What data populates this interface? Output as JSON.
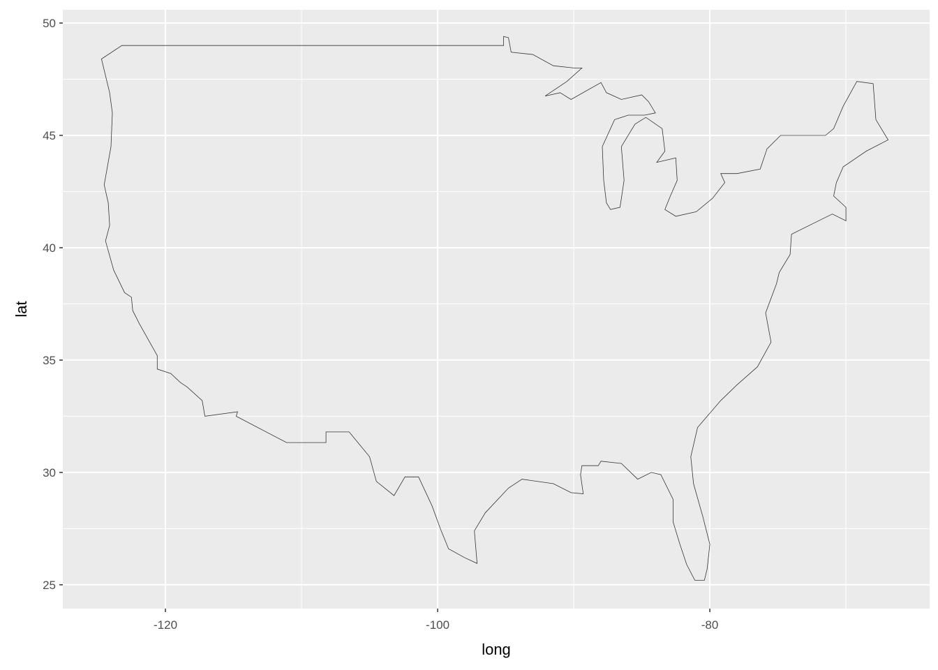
{
  "chart_data": {
    "type": "map-polygon",
    "xlabel": "long",
    "ylabel": "lat",
    "xlim": [
      -127.54,
      -63.85
    ],
    "ylim": [
      23.94,
      50.59
    ],
    "x_ticks": [
      -120,
      -100,
      -80
    ],
    "y_ticks": [
      25,
      30,
      35,
      40,
      45,
      50
    ],
    "x_tick_labels": [
      "-120",
      "-100",
      "-80"
    ],
    "y_tick_labels": [
      "25",
      "30",
      "35",
      "40",
      "45",
      "50"
    ],
    "grid": true,
    "panel_background": "#ebebeb",
    "grid_color": "#ffffff",
    "outline_color": "#333333",
    "outline": [
      [
        -124.7,
        48.4
      ],
      [
        -123.2,
        49.0
      ],
      [
        -95.15,
        49.0
      ],
      [
        -95.15,
        49.4
      ],
      [
        -94.8,
        49.35
      ],
      [
        -94.6,
        48.7
      ],
      [
        -93.0,
        48.6
      ],
      [
        -91.5,
        48.1
      ],
      [
        -90.0,
        48.0
      ],
      [
        -89.4,
        48.0
      ],
      [
        -90.5,
        47.4
      ],
      [
        -92.1,
        46.75
      ],
      [
        -91.0,
        46.9
      ],
      [
        -90.2,
        46.6
      ],
      [
        -88.0,
        47.35
      ],
      [
        -87.6,
        46.9
      ],
      [
        -86.5,
        46.6
      ],
      [
        -85.0,
        46.8
      ],
      [
        -84.5,
        46.5
      ],
      [
        -84.0,
        46.0
      ],
      [
        -84.8,
        45.9
      ],
      [
        -86.0,
        45.9
      ],
      [
        -87.0,
        45.7
      ],
      [
        -87.9,
        44.5
      ],
      [
        -87.8,
        43.0
      ],
      [
        -87.6,
        42.0
      ],
      [
        -87.3,
        41.7
      ],
      [
        -86.6,
        41.8
      ],
      [
        -86.3,
        43.0
      ],
      [
        -86.5,
        44.5
      ],
      [
        -85.5,
        45.5
      ],
      [
        -84.7,
        45.8
      ],
      [
        -83.5,
        45.3
      ],
      [
        -83.3,
        44.3
      ],
      [
        -83.9,
        43.8
      ],
      [
        -82.5,
        44.0
      ],
      [
        -82.4,
        43.0
      ],
      [
        -82.9,
        42.3
      ],
      [
        -83.3,
        41.7
      ],
      [
        -82.5,
        41.4
      ],
      [
        -81.0,
        41.6
      ],
      [
        -79.8,
        42.2
      ],
      [
        -78.9,
        42.9
      ],
      [
        -79.2,
        43.3
      ],
      [
        -78.0,
        43.3
      ],
      [
        -76.3,
        43.5
      ],
      [
        -75.8,
        44.4
      ],
      [
        -74.8,
        45.0
      ],
      [
        -71.5,
        45.0
      ],
      [
        -70.9,
        45.3
      ],
      [
        -70.2,
        46.3
      ],
      [
        -69.2,
        47.4
      ],
      [
        -68.0,
        47.3
      ],
      [
        -67.8,
        45.7
      ],
      [
        -66.9,
        44.8
      ],
      [
        -68.5,
        44.3
      ],
      [
        -70.2,
        43.6
      ],
      [
        -70.7,
        42.9
      ],
      [
        -70.9,
        42.3
      ],
      [
        -70.0,
        41.8
      ],
      [
        -70.0,
        41.2
      ],
      [
        -71.0,
        41.5
      ],
      [
        -72.0,
        41.2
      ],
      [
        -74.0,
        40.6
      ],
      [
        -74.1,
        39.7
      ],
      [
        -74.9,
        38.9
      ],
      [
        -75.1,
        38.4
      ],
      [
        -75.9,
        37.1
      ],
      [
        -75.5,
        35.8
      ],
      [
        -76.5,
        34.7
      ],
      [
        -78.0,
        33.9
      ],
      [
        -79.2,
        33.2
      ],
      [
        -80.9,
        32.0
      ],
      [
        -81.4,
        30.7
      ],
      [
        -81.2,
        29.5
      ],
      [
        -80.5,
        28.0
      ],
      [
        -80.0,
        26.8
      ],
      [
        -80.2,
        25.7
      ],
      [
        -80.4,
        25.2
      ],
      [
        -81.1,
        25.2
      ],
      [
        -81.7,
        25.9
      ],
      [
        -82.2,
        26.8
      ],
      [
        -82.7,
        27.8
      ],
      [
        -82.7,
        28.8
      ],
      [
        -83.6,
        29.9
      ],
      [
        -84.3,
        30.0
      ],
      [
        -85.3,
        29.7
      ],
      [
        -86.5,
        30.4
      ],
      [
        -88.0,
        30.5
      ],
      [
        -88.2,
        30.3
      ],
      [
        -89.4,
        30.3
      ],
      [
        -89.5,
        29.9
      ],
      [
        -89.3,
        29.05
      ],
      [
        -90.2,
        29.1
      ],
      [
        -91.5,
        29.5
      ],
      [
        -93.8,
        29.7
      ],
      [
        -94.8,
        29.3
      ],
      [
        -96.5,
        28.2
      ],
      [
        -97.3,
        27.4
      ],
      [
        -97.1,
        25.95
      ],
      [
        -98.0,
        26.2
      ],
      [
        -99.2,
        26.6
      ],
      [
        -99.8,
        27.5
      ],
      [
        -100.4,
        28.5
      ],
      [
        -101.4,
        29.8
      ],
      [
        -102.4,
        29.8
      ],
      [
        -103.2,
        28.97
      ],
      [
        -104.5,
        29.6
      ],
      [
        -105.0,
        30.7
      ],
      [
        -106.5,
        31.8
      ],
      [
        -108.2,
        31.8
      ],
      [
        -108.2,
        31.33
      ],
      [
        -111.1,
        31.33
      ],
      [
        -114.8,
        32.5
      ],
      [
        -114.7,
        32.7
      ],
      [
        -117.1,
        32.5
      ],
      [
        -117.3,
        33.2
      ],
      [
        -118.4,
        33.8
      ],
      [
        -118.9,
        34.0
      ],
      [
        -119.6,
        34.4
      ],
      [
        -120.6,
        34.6
      ],
      [
        -120.6,
        35.2
      ],
      [
        -121.9,
        36.6
      ],
      [
        -122.4,
        37.2
      ],
      [
        -122.5,
        37.8
      ],
      [
        -123.0,
        38.0
      ],
      [
        -123.8,
        39.0
      ],
      [
        -124.4,
        40.3
      ],
      [
        -124.1,
        41.0
      ],
      [
        -124.2,
        42.0
      ],
      [
        -124.5,
        42.8
      ],
      [
        -124.0,
        44.5
      ],
      [
        -123.9,
        46.0
      ],
      [
        -124.1,
        46.9
      ],
      [
        -124.7,
        48.4
      ]
    ]
  }
}
